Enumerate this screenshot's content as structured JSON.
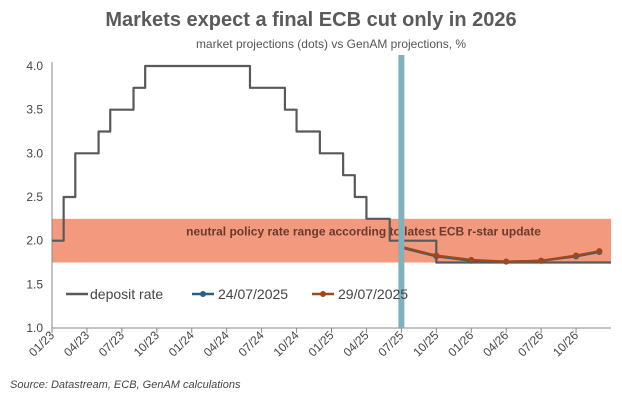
{
  "title": "Markets expect a final ECB cut only in 2026",
  "subtitle": "market projections (dots) vs GenAM projections, %",
  "source": "Source: Datastream, ECB, GenAM calculations",
  "colors": {
    "deposit_rate": "#595959",
    "band": "#f08b6c",
    "vline": "#7fb2bc",
    "series_2407": "#2b5f82",
    "series_2907": "#9b4a1e"
  },
  "chart_data": {
    "type": "line",
    "title": "Markets expect a final ECB cut only in 2026",
    "subtitle": "market projections (dots) vs GenAM projections, %",
    "xlabel": "",
    "ylabel": "",
    "ylim": [
      1.0,
      4.0
    ],
    "yticks": [
      "1.0",
      "1.5",
      "2.0",
      "2.5",
      "3.0",
      "3.5",
      "4.0"
    ],
    "xticks": [
      "01/23",
      "04/23",
      "07/23",
      "10/23",
      "01/24",
      "04/24",
      "07/24",
      "10/24",
      "01/25",
      "04/25",
      "07/25",
      "10/25",
      "01/26",
      "04/26",
      "07/26",
      "10/26"
    ],
    "xrange": [
      "2023-01",
      "2026-12"
    ],
    "grid": false,
    "legend": "inside-bottom-left",
    "neutral_band": {
      "low": 1.75,
      "high": 2.25,
      "label": "neutral policy rate range according to latest ECB r-star update"
    },
    "vertical_marker": "2025-07",
    "series": [
      {
        "name": "deposit rate",
        "step": true,
        "points": [
          [
            "2023-01",
            2.0
          ],
          [
            "2023-02",
            2.5
          ],
          [
            "2023-03",
            3.0
          ],
          [
            "2023-05",
            3.25
          ],
          [
            "2023-06",
            3.5
          ],
          [
            "2023-08",
            3.75
          ],
          [
            "2023-09",
            4.0
          ],
          [
            "2024-06",
            3.75
          ],
          [
            "2024-09",
            3.5
          ],
          [
            "2024-10",
            3.25
          ],
          [
            "2024-12",
            3.0
          ],
          [
            "2025-02",
            2.75
          ],
          [
            "2025-03",
            2.5
          ],
          [
            "2025-04",
            2.25
          ],
          [
            "2025-06",
            2.0
          ],
          [
            "2025-09",
            2.0
          ],
          [
            "2025-10",
            1.75
          ],
          [
            "2026-12",
            1.75
          ]
        ]
      },
      {
        "name": "24/07/2025",
        "points": [
          [
            "2025-07",
            1.92
          ],
          [
            "2025-10",
            1.82
          ],
          [
            "2026-01",
            1.77
          ],
          [
            "2026-04",
            1.76
          ],
          [
            "2026-07",
            1.77
          ],
          [
            "2026-10",
            1.82
          ],
          [
            "2026-12",
            1.87
          ]
        ]
      },
      {
        "name": "29/07/2025",
        "points": [
          [
            "2025-07",
            1.93
          ],
          [
            "2025-10",
            1.83
          ],
          [
            "2026-01",
            1.78
          ],
          [
            "2026-04",
            1.76
          ],
          [
            "2026-07",
            1.77
          ],
          [
            "2026-10",
            1.83
          ],
          [
            "2026-12",
            1.88
          ]
        ]
      }
    ]
  }
}
